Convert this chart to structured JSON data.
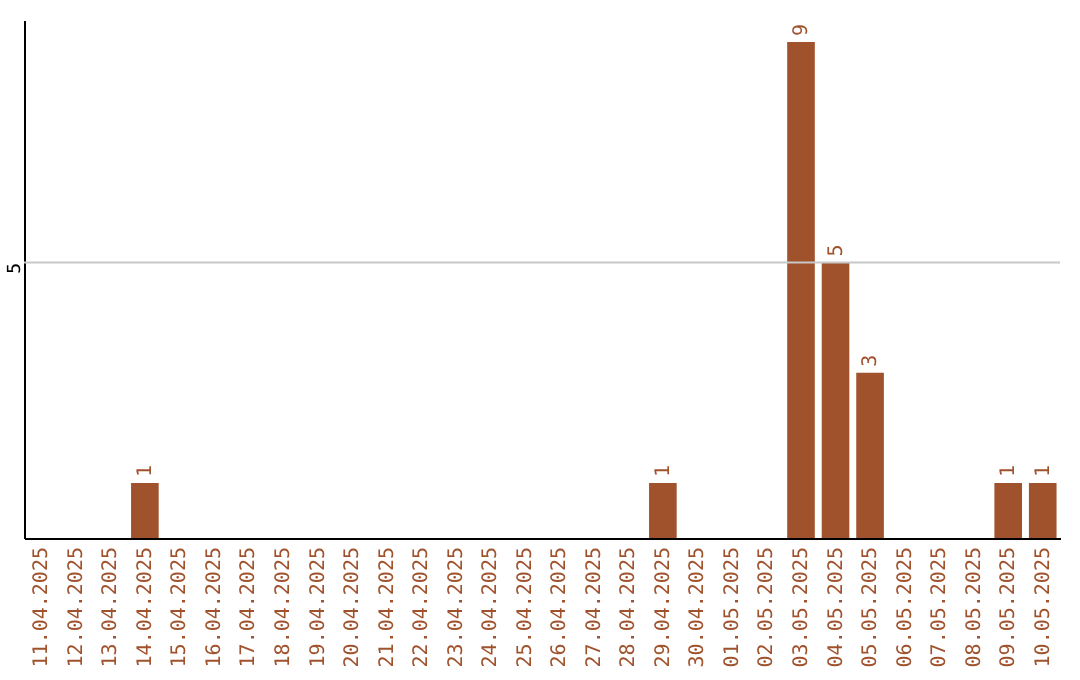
{
  "chart_data": {
    "type": "bar",
    "categories": [
      "11.04.2025",
      "12.04.2025",
      "13.04.2025",
      "14.04.2025",
      "15.04.2025",
      "16.04.2025",
      "17.04.2025",
      "18.04.2025",
      "19.04.2025",
      "20.04.2025",
      "21.04.2025",
      "22.04.2025",
      "23.04.2025",
      "24.04.2025",
      "25.04.2025",
      "26.04.2025",
      "27.04.2025",
      "28.04.2025",
      "29.04.2025",
      "30.04.2025",
      "01.05.2025",
      "02.05.2025",
      "03.05.2025",
      "04.05.2025",
      "05.05.2025",
      "06.05.2025",
      "07.05.2025",
      "08.05.2025",
      "09.05.2025",
      "10.05.2025"
    ],
    "values": [
      0,
      0,
      0,
      1,
      0,
      0,
      0,
      0,
      0,
      0,
      0,
      0,
      0,
      0,
      0,
      0,
      0,
      0,
      1,
      0,
      0,
      0,
      9,
      5,
      3,
      0,
      0,
      0,
      1,
      1
    ],
    "value_labels": [
      null,
      null,
      null,
      "1",
      null,
      null,
      null,
      null,
      null,
      null,
      null,
      null,
      null,
      null,
      null,
      null,
      null,
      null,
      "1",
      null,
      null,
      null,
      "9",
      "5",
      "3",
      null,
      null,
      null,
      "1",
      "1"
    ],
    "color": "#a0522d",
    "ylim": [
      0,
      9.4
    ],
    "ref_lines": [
      {
        "axis": "y",
        "value": 5,
        "label": "5",
        "color": "#c8c8c8"
      }
    ]
  }
}
